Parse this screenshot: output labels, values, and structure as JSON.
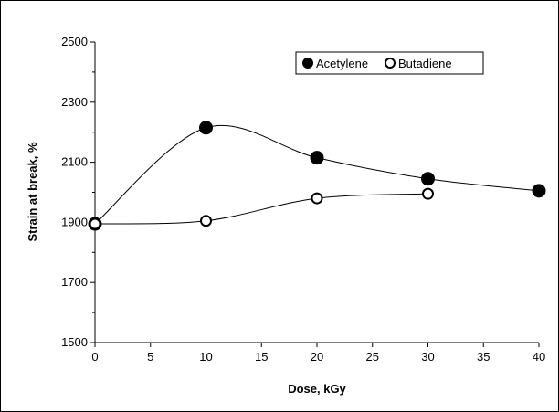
{
  "chart_data": {
    "type": "scatter",
    "xlabel": "Dose, kGy",
    "ylabel": "Strain at break, %",
    "xlim": [
      0,
      40
    ],
    "ylim": [
      1500,
      2500
    ],
    "x_ticks": [
      0,
      5,
      10,
      15,
      20,
      25,
      30,
      35,
      40
    ],
    "y_ticks": [
      1500,
      1700,
      1900,
      2100,
      2300,
      2500
    ],
    "grid": false,
    "legend_position": "top-right",
    "series": [
      {
        "name": "Acetylene",
        "marker": "filled-circle",
        "color": "#000000",
        "smoothed_line": true,
        "x": [
          0,
          10,
          20,
          30,
          40
        ],
        "y": [
          1895,
          2215,
          2115,
          2045,
          2005
        ]
      },
      {
        "name": "Butadiene",
        "marker": "open-circle",
        "color": "#000000",
        "smoothed_line": true,
        "x": [
          0,
          10,
          20,
          30
        ],
        "y": [
          1895,
          1905,
          1980,
          1995
        ]
      }
    ]
  }
}
